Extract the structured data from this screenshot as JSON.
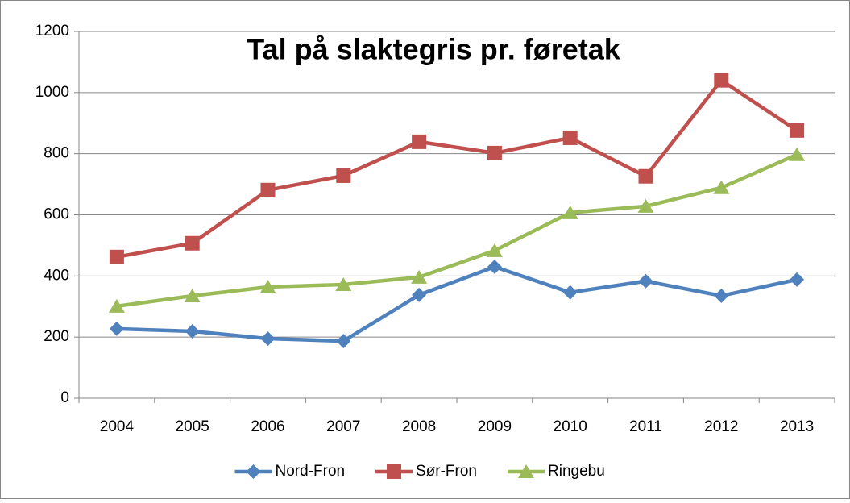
{
  "chart_data": {
    "type": "line",
    "title": "Tal på slaktegris pr. føretak",
    "categories": [
      "2004",
      "2005",
      "2006",
      "2007",
      "2008",
      "2009",
      "2010",
      "2011",
      "2012",
      "2013"
    ],
    "series": [
      {
        "name": "Nord-Fron",
        "color": "#4f81bd",
        "marker": "diamond",
        "values": [
          227,
          219,
          195,
          187,
          338,
          430,
          346,
          383,
          335,
          388
        ]
      },
      {
        "name": "Sør-Fron",
        "color": "#c0504d",
        "marker": "square",
        "values": [
          462,
          507,
          681,
          728,
          839,
          802,
          852,
          726,
          1040,
          876
        ]
      },
      {
        "name": "Ringebu",
        "color": "#9bbb59",
        "marker": "triangle",
        "values": [
          301,
          335,
          364,
          372,
          396,
          483,
          607,
          628,
          689,
          797
        ]
      }
    ],
    "ylim": [
      0,
      1200
    ],
    "yticks": [
      0,
      200,
      400,
      600,
      800,
      1000,
      1200
    ],
    "grid": true,
    "legend": "bottom"
  }
}
